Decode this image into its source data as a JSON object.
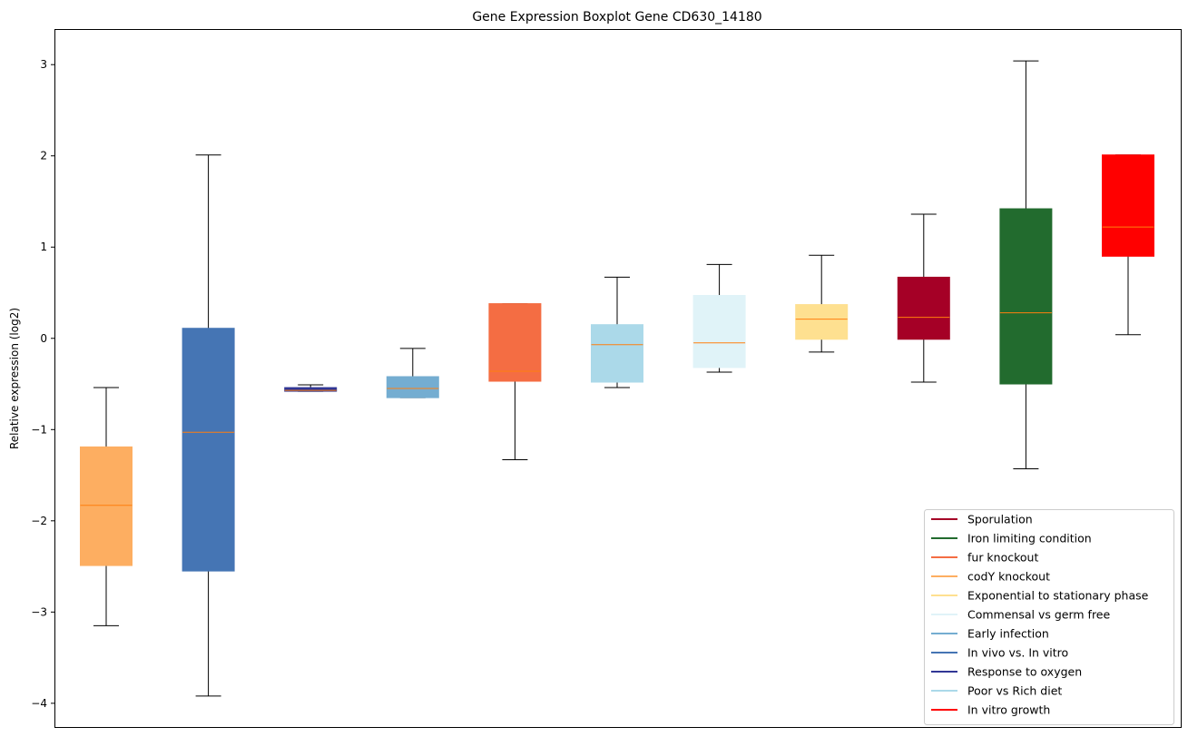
{
  "chart_data": {
    "type": "boxplot",
    "title": "Gene Expression Boxplot Gene CD630_14180",
    "xlabel": "",
    "ylabel": "Relative expression (log2)",
    "ylim": [
      -4.27,
      3.39
    ],
    "yticks": [
      3,
      2,
      1,
      0,
      -1,
      -2,
      -3,
      -4
    ],
    "ytick_labels": [
      "3",
      "2",
      "1",
      "0",
      "−1",
      "−2",
      "−3",
      "−4"
    ],
    "grid": false,
    "legend_placement": "lower-right",
    "median_color": "#ff7f0e",
    "boxes": [
      {
        "name": "codY knockout",
        "color": "#fdae61",
        "whislo": -3.15,
        "q1": -2.49,
        "med": -1.83,
        "q3": -1.19,
        "whishi": -0.54
      },
      {
        "name": "In vivo vs. In vitro",
        "color": "#4575b4",
        "whislo": -3.92,
        "q1": -2.55,
        "med": -1.03,
        "q3": 0.11,
        "whishi": 2.01
      },
      {
        "name": "Response to oxygen",
        "color": "#313695",
        "whislo": -0.58,
        "q1": -0.58,
        "med": -0.57,
        "q3": -0.54,
        "whishi": -0.51
      },
      {
        "name": "Early infection",
        "color": "#74add1",
        "whislo": -0.65,
        "q1": -0.65,
        "med": -0.55,
        "q3": -0.42,
        "whishi": -0.11
      },
      {
        "name": "fur knockout",
        "color": "#f46d43",
        "whislo": -1.33,
        "q1": -0.47,
        "med": -0.36,
        "q3": 0.38,
        "whishi": 0.38
      },
      {
        "name": "Poor vs Rich diet",
        "color": "#abd9e9",
        "whislo": -0.54,
        "q1": -0.48,
        "med": -0.07,
        "q3": 0.15,
        "whishi": 0.67
      },
      {
        "name": "Commensal vs germ free",
        "color": "#e0f3f8",
        "whislo": -0.37,
        "q1": -0.32,
        "med": -0.05,
        "q3": 0.47,
        "whishi": 0.81
      },
      {
        "name": "Exponential to stationary phase",
        "color": "#fee090",
        "whislo": -0.15,
        "q1": -0.01,
        "med": 0.21,
        "q3": 0.37,
        "whishi": 0.91
      },
      {
        "name": "Sporulation",
        "color": "#a50026",
        "whislo": -0.48,
        "q1": -0.01,
        "med": 0.23,
        "q3": 0.67,
        "whishi": 1.36
      },
      {
        "name": "Iron limiting condition",
        "color": "#226b2e",
        "whislo": -1.43,
        "q1": -0.5,
        "med": 0.28,
        "q3": 1.42,
        "whishi": 3.04
      },
      {
        "name": "In vitro growth",
        "color": "#ff0000",
        "whislo": 0.04,
        "q1": 0.9,
        "med": 1.22,
        "q3": 2.01,
        "whishi": 2.01
      }
    ],
    "legend": [
      {
        "label": "Sporulation",
        "color": "#a50026"
      },
      {
        "label": "Iron limiting condition",
        "color": "#226b2e"
      },
      {
        "label": "fur knockout",
        "color": "#f46d43"
      },
      {
        "label": "codY knockout",
        "color": "#fdae61"
      },
      {
        "label": "Exponential to stationary phase",
        "color": "#fee090"
      },
      {
        "label": "Commensal vs germ free",
        "color": "#e0f3f8"
      },
      {
        "label": "Early infection",
        "color": "#74add1"
      },
      {
        "label": "In vivo vs. In vitro",
        "color": "#4575b4"
      },
      {
        "label": "Response to oxygen",
        "color": "#313695"
      },
      {
        "label": "Poor vs Rich diet",
        "color": "#abd9e9"
      },
      {
        "label": "In vitro growth",
        "color": "#ff0000"
      }
    ]
  }
}
